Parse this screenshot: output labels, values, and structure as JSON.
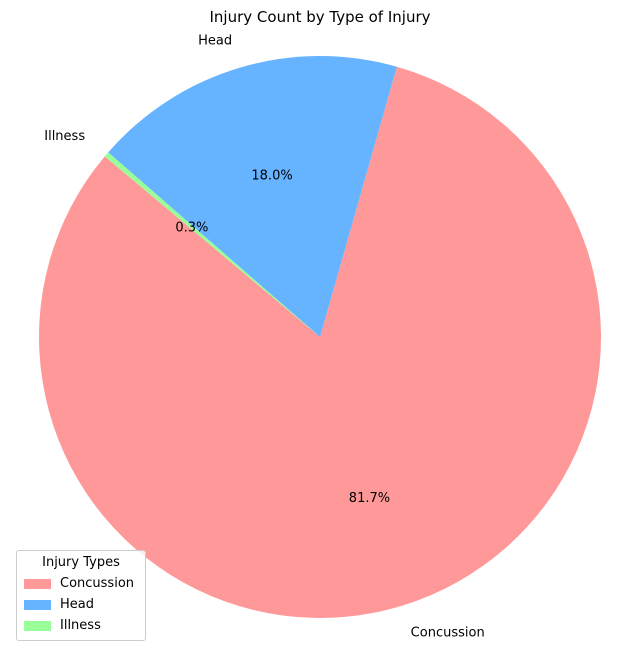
{
  "chart_data": {
    "type": "pie",
    "title": "Injury Count by Type of Injury",
    "labels": [
      "Concussion",
      "Head",
      "Illness"
    ],
    "values": [
      81.7,
      18.0,
      0.3
    ],
    "percent_labels": [
      "81.7%",
      "18.0%",
      "0.3%"
    ],
    "colors": [
      "#ff9999",
      "#66b3ff",
      "#99ff99"
    ],
    "legend": {
      "title": "Injury Types",
      "placement": "lower-left",
      "items": [
        "Concussion",
        "Head",
        "Illness"
      ]
    }
  }
}
